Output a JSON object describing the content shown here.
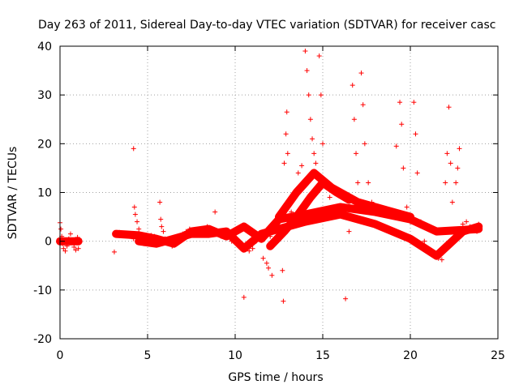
{
  "chart_data": {
    "type": "scatter",
    "title": "Day 263 of 2011, Sidereal Day-to-day VTEC variation (SDTVAR) for receiver casc",
    "xlabel": "GPS time / hours",
    "ylabel": "SDTVAR / TECUs",
    "xlim": [
      0,
      25
    ],
    "ylim": [
      -20,
      40
    ],
    "xticks": [
      0,
      5,
      10,
      15,
      20,
      25
    ],
    "yticks": [
      -20,
      -10,
      0,
      10,
      20,
      30,
      40
    ],
    "xtick_labels": [
      "0",
      "5",
      "10",
      "15",
      "20",
      "25"
    ],
    "ytick_labels": [
      "-20",
      "-10",
      "0",
      "10",
      "20",
      "30",
      "40"
    ],
    "grid": true,
    "marker": "+",
    "color": "#ff0000",
    "series": [
      {
        "name": "SDTVAR",
        "points": [
          [
            0.0,
            3.8
          ],
          [
            0.05,
            2.5
          ],
          [
            0.1,
            1.0
          ],
          [
            0.15,
            -0.5
          ],
          [
            0.2,
            -1.5
          ],
          [
            0.3,
            -2.0
          ],
          [
            0.4,
            -1.0
          ],
          [
            0.5,
            0.5
          ],
          [
            0.6,
            1.5
          ],
          [
            0.7,
            0.0
          ],
          [
            0.8,
            -1.2
          ],
          [
            0.9,
            -1.8
          ],
          [
            1.0,
            0.8
          ],
          [
            1.05,
            -1.5
          ],
          [
            3.1,
            -2.2
          ],
          [
            3.2,
            1.5
          ],
          [
            3.4,
            1.8
          ],
          [
            3.6,
            1.5
          ],
          [
            3.8,
            1.2
          ],
          [
            4.0,
            1.0
          ],
          [
            4.2,
            0.5
          ],
          [
            4.2,
            19.0
          ],
          [
            4.25,
            7.0
          ],
          [
            4.3,
            5.5
          ],
          [
            4.4,
            4.0
          ],
          [
            4.5,
            2.5
          ],
          [
            4.6,
            1.0
          ],
          [
            4.7,
            0.0
          ],
          [
            4.8,
            -0.5
          ],
          [
            5.0,
            0.5
          ],
          [
            5.2,
            1.2
          ],
          [
            5.4,
            1.0
          ],
          [
            5.6,
            0.5
          ],
          [
            5.7,
            8.0
          ],
          [
            5.75,
            4.5
          ],
          [
            5.8,
            3.0
          ],
          [
            5.9,
            2.0
          ],
          [
            6.0,
            0.5
          ],
          [
            6.2,
            -0.5
          ],
          [
            6.4,
            -1.0
          ],
          [
            6.6,
            -0.5
          ],
          [
            6.8,
            0.5
          ],
          [
            7.0,
            1.5
          ],
          [
            7.2,
            2.0
          ],
          [
            7.4,
            2.5
          ],
          [
            7.6,
            2.0
          ],
          [
            7.8,
            1.5
          ],
          [
            8.0,
            2.0
          ],
          [
            8.2,
            2.5
          ],
          [
            8.4,
            3.0
          ],
          [
            8.6,
            2.5
          ],
          [
            8.8,
            2.0
          ],
          [
            8.85,
            6.0
          ],
          [
            9.0,
            1.5
          ],
          [
            9.2,
            1.0
          ],
          [
            9.4,
            2.0
          ],
          [
            9.6,
            1.0
          ],
          [
            9.8,
            0.0
          ],
          [
            10.0,
            1.5
          ],
          [
            10.2,
            2.5
          ],
          [
            10.4,
            3.0
          ],
          [
            10.5,
            -11.5
          ],
          [
            10.6,
            -1.0
          ],
          [
            10.8,
            -2.0
          ],
          [
            11.0,
            -1.5
          ],
          [
            11.2,
            0.0
          ],
          [
            11.4,
            0.5
          ],
          [
            11.6,
            -3.5
          ],
          [
            11.8,
            -4.5
          ],
          [
            11.9,
            -5.5
          ],
          [
            12.0,
            1.0
          ],
          [
            12.1,
            -7.0
          ],
          [
            12.2,
            2.5
          ],
          [
            12.4,
            4.0
          ],
          [
            12.6,
            5.0
          ],
          [
            12.7,
            -6.0
          ],
          [
            12.75,
            -12.3
          ],
          [
            12.8,
            16.0
          ],
          [
            12.9,
            22.0
          ],
          [
            12.95,
            26.5
          ],
          [
            13.0,
            18.0
          ],
          [
            13.2,
            6.0
          ],
          [
            13.4,
            9.0
          ],
          [
            13.6,
            14.0
          ],
          [
            13.8,
            15.5
          ],
          [
            14.0,
            39.0
          ],
          [
            14.1,
            35.0
          ],
          [
            14.2,
            30.0
          ],
          [
            14.3,
            25.0
          ],
          [
            14.4,
            21.0
          ],
          [
            14.5,
            18.0
          ],
          [
            14.6,
            16.0
          ],
          [
            14.8,
            38.0
          ],
          [
            14.9,
            30.0
          ],
          [
            15.0,
            20.0
          ],
          [
            15.2,
            12.0
          ],
          [
            15.4,
            9.0
          ],
          [
            15.6,
            7.0
          ],
          [
            15.8,
            6.5
          ],
          [
            16.0,
            6.0
          ],
          [
            16.2,
            5.0
          ],
          [
            16.3,
            -11.8
          ],
          [
            16.5,
            2.0
          ],
          [
            16.7,
            32.0
          ],
          [
            16.8,
            25.0
          ],
          [
            16.9,
            18.0
          ],
          [
            17.0,
            12.0
          ],
          [
            17.2,
            34.5
          ],
          [
            17.3,
            28.0
          ],
          [
            17.4,
            20.0
          ],
          [
            17.6,
            12.0
          ],
          [
            17.8,
            8.0
          ],
          [
            18.0,
            7.0
          ],
          [
            18.5,
            6.0
          ],
          [
            19.0,
            5.0
          ],
          [
            19.2,
            19.5
          ],
          [
            19.4,
            28.5
          ],
          [
            19.5,
            24.0
          ],
          [
            19.6,
            15.0
          ],
          [
            19.8,
            7.0
          ],
          [
            20.0,
            4.0
          ],
          [
            20.2,
            28.5
          ],
          [
            20.3,
            22.0
          ],
          [
            20.4,
            14.0
          ],
          [
            20.6,
            4.0
          ],
          [
            20.8,
            0.0
          ],
          [
            21.0,
            -1.5
          ],
          [
            21.2,
            -2.5
          ],
          [
            21.4,
            -3.0
          ],
          [
            21.6,
            -3.5
          ],
          [
            21.8,
            -3.8
          ],
          [
            22.0,
            12.0
          ],
          [
            22.1,
            18.0
          ],
          [
            22.2,
            27.5
          ],
          [
            22.3,
            16.0
          ],
          [
            22.4,
            8.0
          ],
          [
            22.5,
            0.5
          ],
          [
            22.6,
            12.0
          ],
          [
            22.7,
            15.0
          ],
          [
            22.8,
            19.0
          ],
          [
            23.0,
            3.5
          ],
          [
            23.2,
            4.0
          ],
          [
            23.4,
            3.0
          ],
          [
            23.6,
            2.5
          ],
          [
            23.8,
            2.0
          ],
          [
            23.9,
            3.5
          ]
        ]
      }
    ]
  }
}
